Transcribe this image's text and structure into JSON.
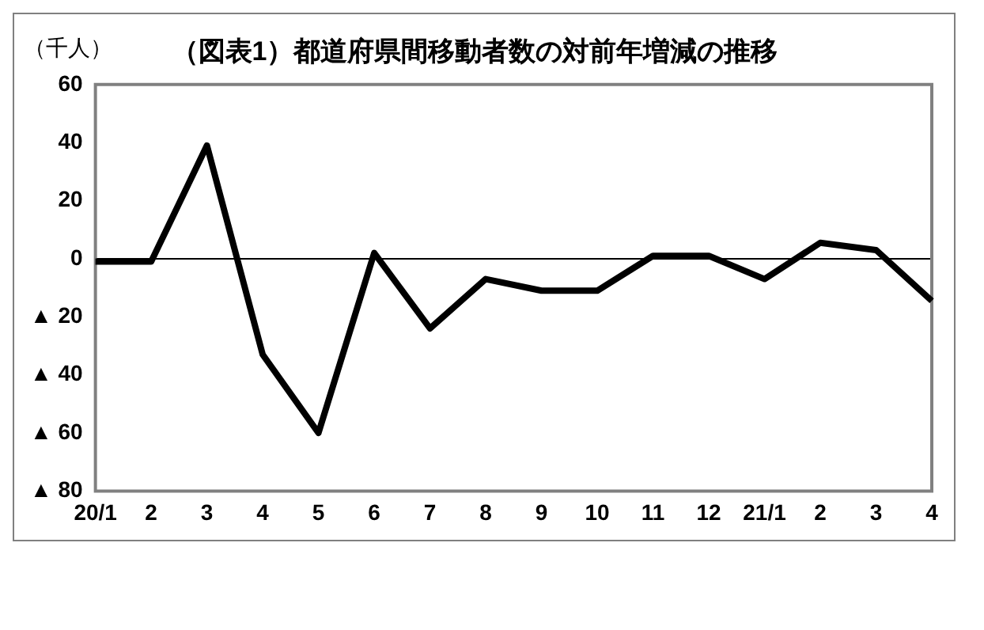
{
  "chart_data": {
    "type": "line",
    "title": "（図表1）都道府県間移動者数の対前年増減の推移",
    "ylabel": "（千人）",
    "categories": [
      "20/1",
      "2",
      "3",
      "4",
      "5",
      "6",
      "7",
      "8",
      "9",
      "10",
      "11",
      "12",
      "21/1",
      "2",
      "3",
      "4"
    ],
    "series": [
      {
        "color": "#000000",
        "values": [
          -1,
          -1,
          39,
          -33,
          -60,
          2,
          -24,
          -7,
          -11,
          -11,
          1,
          1,
          -7,
          5.5,
          3,
          -14.5
        ]
      }
    ],
    "ylim": [
      -80,
      60
    ],
    "yticks": [
      {
        "value": -80,
        "label": "▲ 80"
      },
      {
        "value": -60,
        "label": "▲ 60"
      },
      {
        "value": -40,
        "label": "▲ 40"
      },
      {
        "value": -20,
        "label": "▲ 20"
      },
      0,
      20,
      40,
      60
    ],
    "ref_lines": [
      {
        "axis": "y",
        "value": 0,
        "color": "#000000"
      }
    ],
    "grid": false,
    "legend": false,
    "marker": "none",
    "line_style": "solid"
  }
}
